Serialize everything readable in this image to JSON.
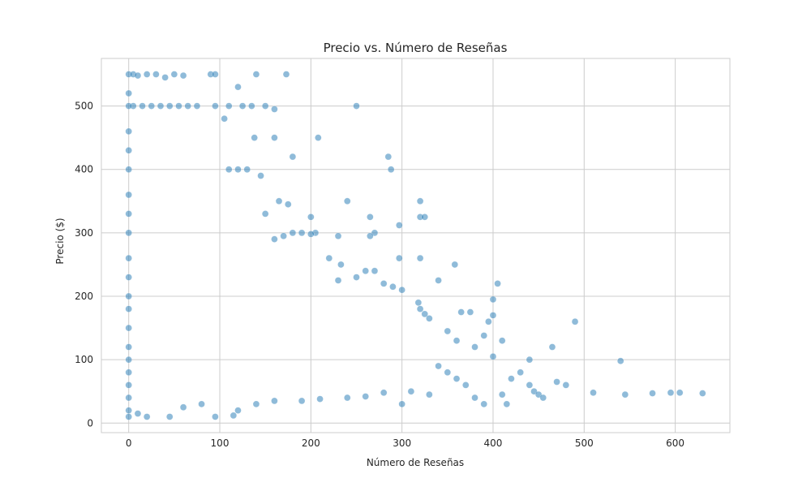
{
  "chart_data": {
    "type": "scatter",
    "title": "Precio vs. Número de Reseñas",
    "xlabel": "Número de Reseñas",
    "ylabel": "Precio ($)",
    "xlim": [
      -30,
      660
    ],
    "ylim": [
      -15,
      575
    ],
    "xticks": [
      0,
      100,
      200,
      300,
      400,
      500,
      600
    ],
    "yticks": [
      0,
      100,
      200,
      300,
      400,
      500
    ],
    "grid": true,
    "color": "#1f77b4",
    "points": [
      [
        0,
        550
      ],
      [
        5,
        550
      ],
      [
        10,
        548
      ],
      [
        20,
        550
      ],
      [
        30,
        550
      ],
      [
        40,
        545
      ],
      [
        50,
        550
      ],
      [
        60,
        548
      ],
      [
        90,
        550
      ],
      [
        95,
        550
      ],
      [
        140,
        550
      ],
      [
        173,
        550
      ],
      [
        120,
        530
      ],
      [
        250,
        500
      ],
      [
        5,
        500
      ],
      [
        15,
        500
      ],
      [
        25,
        500
      ],
      [
        35,
        500
      ],
      [
        45,
        500
      ],
      [
        55,
        500
      ],
      [
        65,
        500
      ],
      [
        75,
        500
      ],
      [
        95,
        500
      ],
      [
        110,
        500
      ],
      [
        125,
        500
      ],
      [
        135,
        500
      ],
      [
        150,
        500
      ],
      [
        160,
        495
      ],
      [
        105,
        480
      ],
      [
        208,
        450
      ],
      [
        138,
        450
      ],
      [
        160,
        450
      ],
      [
        180,
        420
      ],
      [
        285,
        420
      ],
      [
        288,
        400
      ],
      [
        110,
        400
      ],
      [
        120,
        400
      ],
      [
        130,
        400
      ],
      [
        145,
        390
      ],
      [
        240,
        350
      ],
      [
        320,
        350
      ],
      [
        265,
        325
      ],
      [
        320,
        325
      ],
      [
        325,
        325
      ],
      [
        297,
        312
      ],
      [
        165,
        350
      ],
      [
        175,
        345
      ],
      [
        200,
        325
      ],
      [
        150,
        330
      ],
      [
        270,
        300
      ],
      [
        265,
        295
      ],
      [
        230,
        295
      ],
      [
        205,
        300
      ],
      [
        200,
        298
      ],
      [
        180,
        300
      ],
      [
        190,
        300
      ],
      [
        170,
        295
      ],
      [
        160,
        290
      ],
      [
        220,
        260
      ],
      [
        233,
        250
      ],
      [
        260,
        240
      ],
      [
        270,
        240
      ],
      [
        297,
        260
      ],
      [
        320,
        260
      ],
      [
        358,
        250
      ],
      [
        340,
        225
      ],
      [
        230,
        225
      ],
      [
        250,
        230
      ],
      [
        280,
        220
      ],
      [
        290,
        215
      ],
      [
        300,
        210
      ],
      [
        405,
        220
      ],
      [
        400,
        195
      ],
      [
        400,
        170
      ],
      [
        365,
        175
      ],
      [
        375,
        175
      ],
      [
        395,
        160
      ],
      [
        318,
        190
      ],
      [
        320,
        180
      ],
      [
        325,
        172
      ],
      [
        330,
        165
      ],
      [
        350,
        145
      ],
      [
        360,
        130
      ],
      [
        380,
        120
      ],
      [
        390,
        138
      ],
      [
        400,
        105
      ],
      [
        410,
        130
      ],
      [
        440,
        100
      ],
      [
        490,
        160
      ],
      [
        465,
        120
      ],
      [
        440,
        60
      ],
      [
        470,
        65
      ],
      [
        480,
        60
      ],
      [
        430,
        80
      ],
      [
        420,
        70
      ],
      [
        445,
        50
      ],
      [
        450,
        45
      ],
      [
        455,
        40
      ],
      [
        410,
        45
      ],
      [
        415,
        30
      ],
      [
        390,
        30
      ],
      [
        380,
        40
      ],
      [
        370,
        60
      ],
      [
        360,
        70
      ],
      [
        350,
        80
      ],
      [
        340,
        90
      ],
      [
        300,
        30
      ],
      [
        510,
        48
      ],
      [
        545,
        45
      ],
      [
        575,
        47
      ],
      [
        595,
        48
      ],
      [
        605,
        48
      ],
      [
        630,
        47
      ],
      [
        540,
        98
      ],
      [
        0,
        10
      ],
      [
        0,
        20
      ],
      [
        0,
        40
      ],
      [
        0,
        60
      ],
      [
        0,
        80
      ],
      [
        0,
        100
      ],
      [
        0,
        120
      ],
      [
        0,
        150
      ],
      [
        0,
        180
      ],
      [
        0,
        200
      ],
      [
        0,
        230
      ],
      [
        0,
        260
      ],
      [
        0,
        300
      ],
      [
        0,
        330
      ],
      [
        0,
        360
      ],
      [
        0,
        400
      ],
      [
        0,
        430
      ],
      [
        0,
        460
      ],
      [
        0,
        500
      ],
      [
        0,
        520
      ],
      [
        10,
        15
      ],
      [
        20,
        10
      ],
      [
        45,
        10
      ],
      [
        95,
        10
      ],
      [
        115,
        12
      ],
      [
        120,
        20
      ],
      [
        60,
        25
      ],
      [
        80,
        30
      ],
      [
        140,
        30
      ],
      [
        160,
        35
      ],
      [
        190,
        35
      ],
      [
        210,
        38
      ],
      [
        240,
        40
      ],
      [
        260,
        42
      ],
      [
        280,
        48
      ],
      [
        310,
        50
      ],
      [
        330,
        45
      ]
    ]
  }
}
